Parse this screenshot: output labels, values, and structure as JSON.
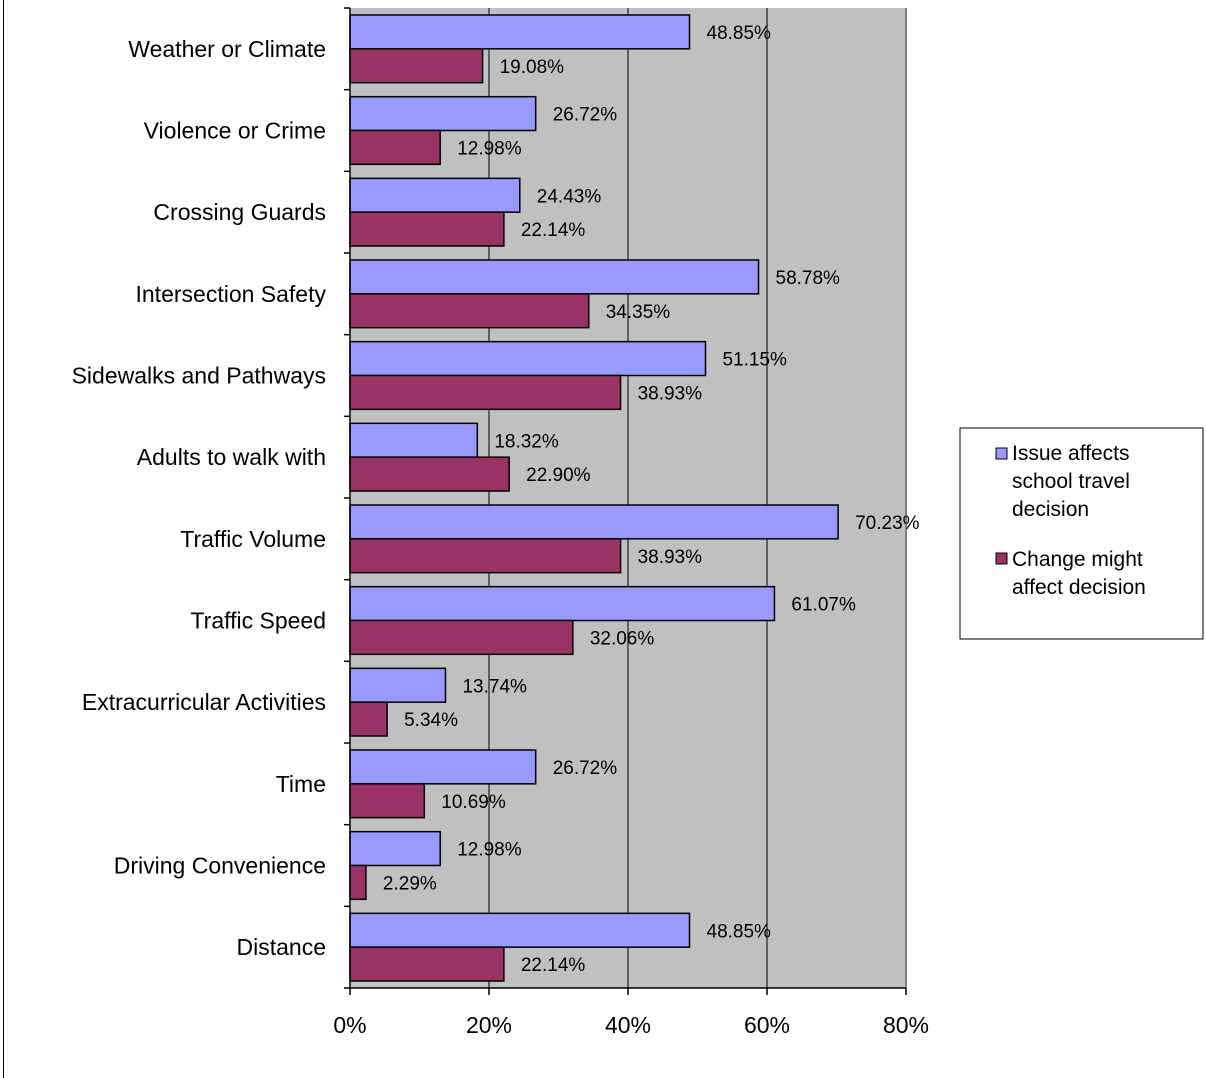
{
  "chart_data": {
    "type": "bar",
    "orientation": "horizontal",
    "categories": [
      "Weather or Climate",
      "Violence or Crime",
      "Crossing Guards",
      "Intersection Safety",
      "Sidewalks and Pathways",
      "Adults to walk with",
      "Traffic Volume",
      "Traffic Speed",
      "Extracurricular Activities",
      "Time",
      "Driving Convenience",
      "Distance"
    ],
    "series": [
      {
        "name": "Issue affects school travel decision",
        "color": "#9999ff",
        "values": [
          48.85,
          26.72,
          24.43,
          58.78,
          51.15,
          18.32,
          70.23,
          61.07,
          13.74,
          26.72,
          12.98,
          48.85
        ],
        "labels": [
          "48.85%",
          "26.72%",
          "24.43%",
          "58.78%",
          "51.15%",
          "18.32%",
          "70.23%",
          "61.07%",
          "13.74%",
          "26.72%",
          "12.98%",
          "48.85%"
        ]
      },
      {
        "name": "Change might affect decision",
        "color": "#993366",
        "values": [
          19.08,
          12.98,
          22.14,
          34.35,
          38.93,
          22.9,
          38.93,
          32.06,
          5.34,
          10.69,
          2.29,
          22.14
        ],
        "labels": [
          "19.08%",
          "12.98%",
          "22.14%",
          "34.35%",
          "38.93%",
          "22.90%",
          "38.93%",
          "32.06%",
          "5.34%",
          "10.69%",
          "2.29%",
          "22.14%"
        ]
      }
    ],
    "xlim": [
      0,
      80
    ],
    "xticks": [
      0,
      20,
      40,
      60,
      80
    ],
    "xtick_labels": [
      "0%",
      "20%",
      "40%",
      "60%",
      "80%"
    ],
    "grid": true,
    "plot_background": "#c0c0c0",
    "legend": {
      "position": "right",
      "entries": [
        "Issue affects school travel decision",
        "Change might affect decision"
      ]
    },
    "title": "",
    "xlabel": "",
    "ylabel": ""
  }
}
